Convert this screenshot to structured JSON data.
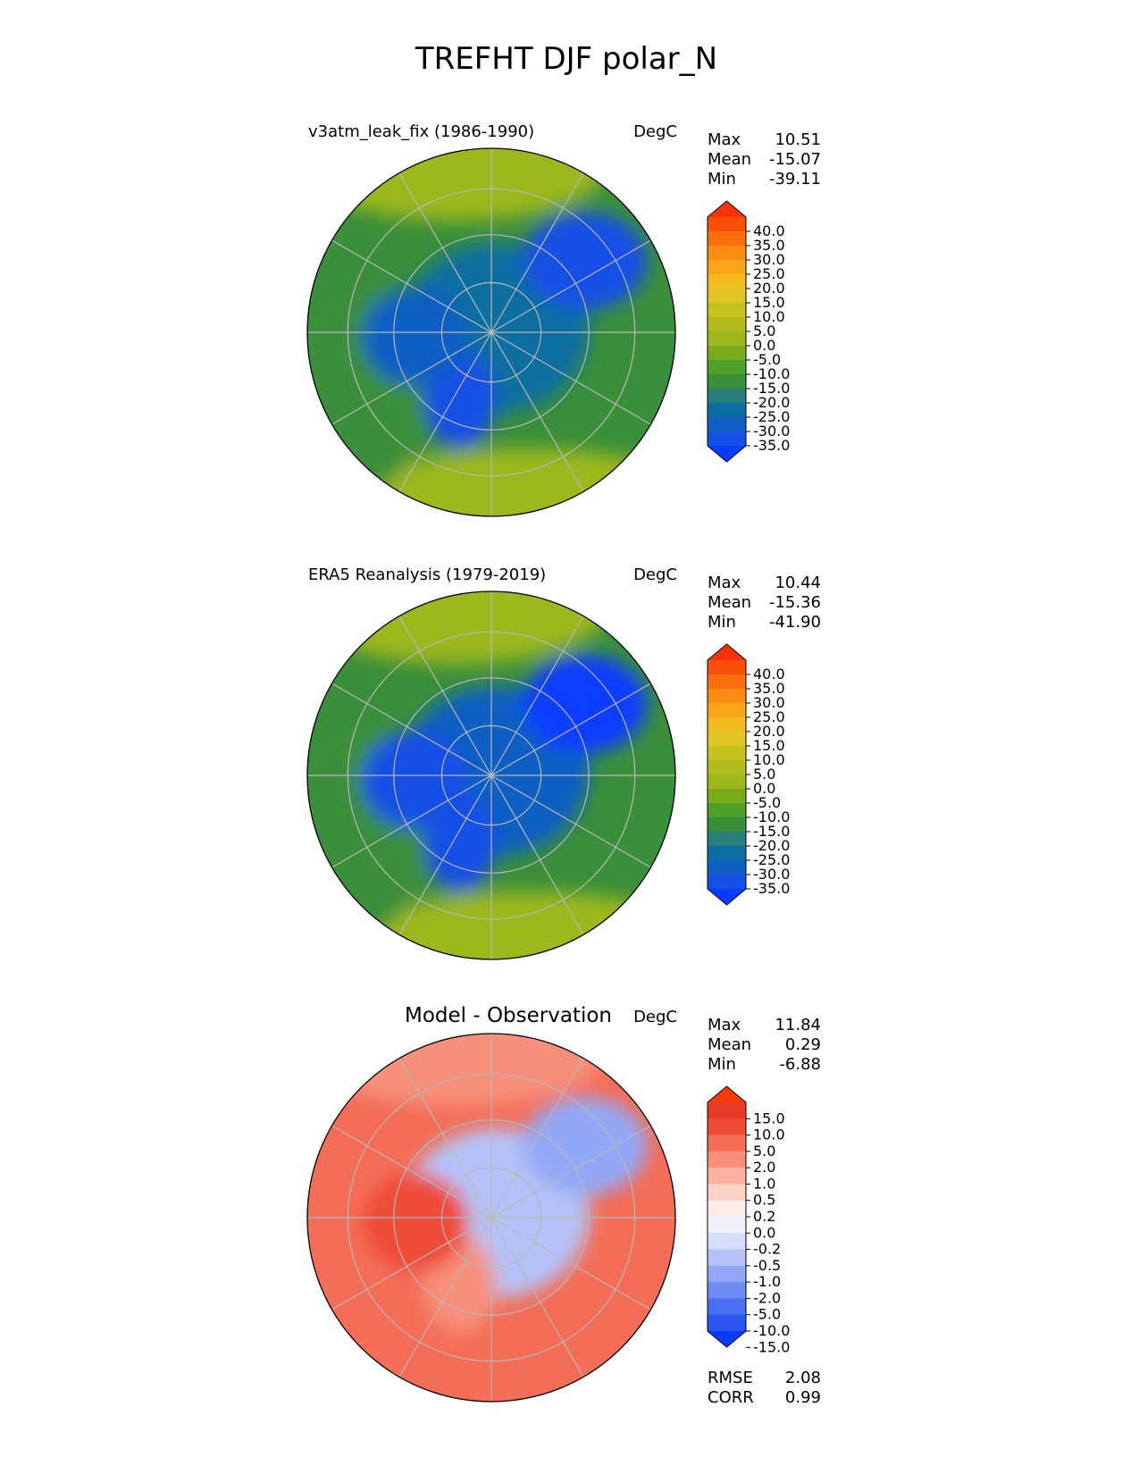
{
  "figure": {
    "title": "TREFHT DJF polar_N"
  },
  "panels": [
    {
      "title": "v3atm_leak_fix (1986-1990)",
      "units": "DegC",
      "stats": {
        "labels": [
          "Max",
          "Mean",
          "Min"
        ],
        "values": [
          "10.51",
          "-15.07",
          "-39.11"
        ]
      },
      "colorbar": {
        "ticks": [
          "40.0",
          "35.0",
          "30.0",
          "25.0",
          "20.0",
          "15.0",
          "10.0",
          "5.0",
          "0.0",
          "-5.0",
          "-10.0",
          "-15.0",
          "-20.0",
          "-25.0",
          "-30.0",
          "-35.0"
        ]
      }
    },
    {
      "title": "ERA5 Reanalysis (1979-2019)",
      "units": "DegC",
      "stats": {
        "labels": [
          "Max",
          "Mean",
          "Min"
        ],
        "values": [
          "10.44",
          "-15.36",
          "-41.90"
        ]
      },
      "colorbar": {
        "ticks": [
          "40.0",
          "35.0",
          "30.0",
          "25.0",
          "20.0",
          "15.0",
          "10.0",
          "5.0",
          "0.0",
          "-5.0",
          "-10.0",
          "-15.0",
          "-20.0",
          "-25.0",
          "-30.0",
          "-35.0"
        ]
      }
    },
    {
      "title": "Model - Observation",
      "units": "DegC",
      "stats": {
        "labels": [
          "Max",
          "Mean",
          "Min"
        ],
        "values": [
          "11.84",
          "0.29",
          "-6.88"
        ]
      },
      "colorbar": {
        "ticks": [
          "15.0",
          "10.0",
          "5.0",
          "2.0",
          "1.0",
          "0.5",
          "0.2",
          "0.0",
          "-0.2",
          "-0.5",
          "-1.0",
          "-2.0",
          "-5.0",
          "-10.0",
          "-15.0"
        ]
      },
      "metrics": {
        "labels": [
          "RMSE",
          "CORR"
        ],
        "values": [
          "2.08",
          "0.99"
        ]
      }
    }
  ],
  "chart_data": [
    {
      "type": "heatmap",
      "projection": "north polar stereographic",
      "title": "v3atm_leak_fix (1986-1990)",
      "units": "DegC",
      "max": 10.51,
      "mean": -15.07,
      "min": -39.11,
      "levels": [
        -35,
        -30,
        -25,
        -20,
        -15,
        -10,
        -5,
        0,
        5,
        10,
        15,
        20,
        25,
        30,
        35,
        40
      ],
      "extend": "both",
      "colors": [
        "#0a3cff",
        "#1450e6",
        "#0f5fc3",
        "#0b6ea0",
        "#2a7d7d",
        "#3a8f3a",
        "#4fa028",
        "#79ad1e",
        "#9cb81c",
        "#b2bb1c",
        "#c7c21e",
        "#e0c726",
        "#f2bb20",
        "#f9a51a",
        "#fb8c12",
        "#fb6e0c",
        "#f94f08",
        "#f93308"
      ],
      "regions": {
        "arctic_ocean": -25,
        "canadian_archipelago": -30,
        "siberia": -33,
        "greenland": -32,
        "north_atlantic": 0,
        "north_pacific": 3,
        "subarctic_land": -15
      }
    },
    {
      "type": "heatmap",
      "projection": "north polar stereographic",
      "title": "ERA5 Reanalysis (1979-2019)",
      "units": "DegC",
      "max": 10.44,
      "mean": -15.36,
      "min": -41.9,
      "levels": [
        -35,
        -30,
        -25,
        -20,
        -15,
        -10,
        -5,
        0,
        5,
        10,
        15,
        20,
        25,
        30,
        35,
        40
      ],
      "extend": "both",
      "colors": [
        "#0a3cff",
        "#1450e6",
        "#0f5fc3",
        "#0b6ea0",
        "#2a7d7d",
        "#3a8f3a",
        "#4fa028",
        "#79ad1e",
        "#9cb81c",
        "#b2bb1c",
        "#c7c21e",
        "#e0c726",
        "#f2bb20",
        "#f9a51a",
        "#fb8c12",
        "#fb6e0c",
        "#f94f08",
        "#f93308"
      ],
      "regions": {
        "arctic_ocean": -26,
        "canadian_archipelago": -32,
        "siberia": -36,
        "greenland": -33,
        "north_atlantic": 0,
        "north_pacific": 2,
        "subarctic_land": -15
      }
    },
    {
      "type": "heatmap",
      "projection": "north polar stereographic",
      "title": "Model - Observation",
      "units": "DegC",
      "max": 11.84,
      "mean": 0.29,
      "min": -6.88,
      "rmse": 2.08,
      "corr": 0.99,
      "levels": [
        -15,
        -10,
        -5,
        -2,
        -1,
        -0.5,
        -0.2,
        0,
        0.2,
        0.5,
        1,
        2,
        5,
        10,
        15
      ],
      "extend": "both",
      "colors": [
        "#0a3cff",
        "#2a55f0",
        "#4a6ef0",
        "#6e8cf4",
        "#92a8f6",
        "#b4c2f8",
        "#d6ddfa",
        "#eef0fb",
        "#fcebe6",
        "#fbd2c6",
        "#f9b3a0",
        "#f7907a",
        "#f46d56",
        "#ee4c37",
        "#e83a26",
        "#fa3a08"
      ],
      "regions": {
        "arctic_ocean": -1,
        "canadian_archipelago": 5,
        "siberia": -2,
        "greenland": 1,
        "north_atlantic": 2,
        "north_pacific": 1,
        "subarctic_land": 2
      }
    }
  ]
}
